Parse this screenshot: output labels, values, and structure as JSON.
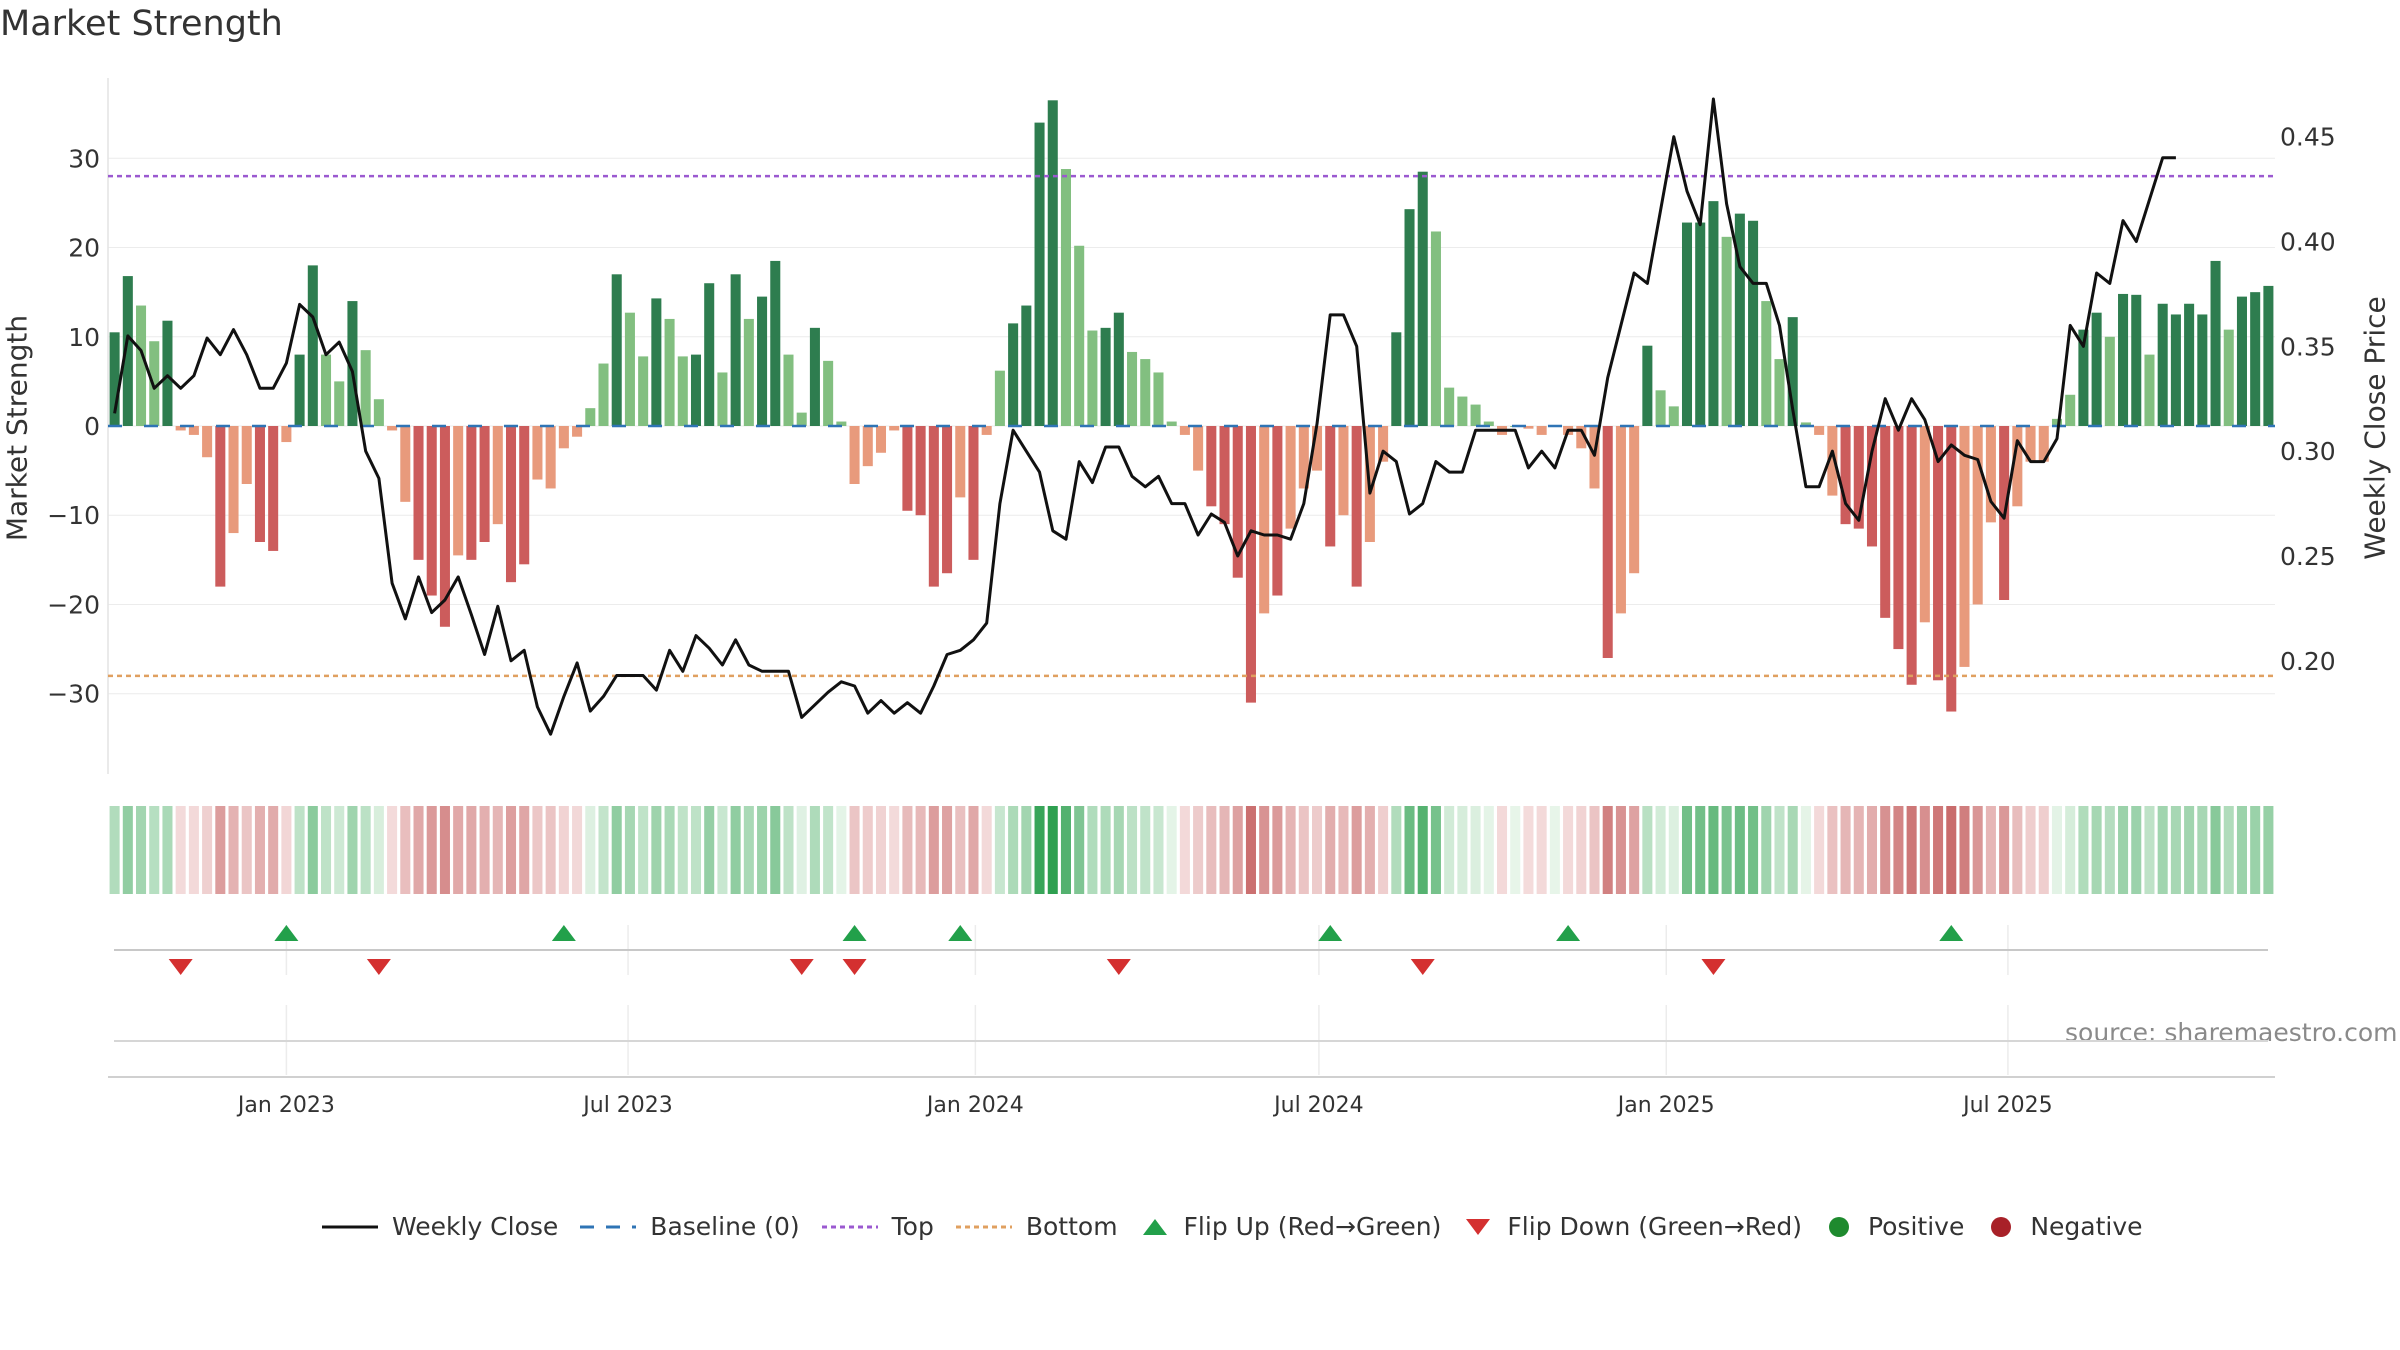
{
  "chart_data": {
    "type": "bar+line",
    "title": "Market Strength",
    "ylabel_left": "Market Strength",
    "ylabel_right": "Weekly Close Price",
    "source": "source: sharemaestro.com",
    "y_left_lim": [
      -39,
      39
    ],
    "y_left_ticks": [
      -30,
      -20,
      -10,
      0,
      10,
      20,
      30
    ],
    "y_left_tick_labels": [
      "−30",
      "−20",
      "−10",
      "0",
      "10",
      "20",
      "30"
    ],
    "y_right_lim": [
      0.146,
      0.478
    ],
    "y_right_ticks": [
      0.2,
      0.25,
      0.3,
      0.35,
      0.4,
      0.45
    ],
    "y_right_tick_labels": [
      "0.20",
      "0.25",
      "0.30",
      "0.35",
      "0.40",
      "0.45"
    ],
    "top_level": 28,
    "bottom_level": -28,
    "baseline": 0,
    "x_start": "2022-10-02",
    "x_step_days": 7,
    "x_ticks": [
      {
        "date": "2023-01-01",
        "label": "Jan 2023"
      },
      {
        "date": "2023-07-01",
        "label": "Jul 2023"
      },
      {
        "date": "2024-01-01",
        "label": "Jan 2024"
      },
      {
        "date": "2024-07-01",
        "label": "Jul 2024"
      },
      {
        "date": "2025-01-01",
        "label": "Jan 2025"
      },
      {
        "date": "2025-07-01",
        "label": "Jul 2025"
      }
    ],
    "strength": [
      10.5,
      16.8,
      13.5,
      9.5,
      11.8,
      -0.5,
      -1.0,
      -3.5,
      -18.0,
      -12.0,
      -6.5,
      -13.0,
      -14.0,
      -1.8,
      8.0,
      18.0,
      8.0,
      5.0,
      14.0,
      8.5,
      3.0,
      -0.5,
      -8.5,
      -15.0,
      -19.0,
      -22.5,
      -14.5,
      -15.0,
      -13.0,
      -11.0,
      -17.5,
      -15.5,
      -6.0,
      -7.0,
      -2.5,
      -1.2,
      2.0,
      7.0,
      17.0,
      12.7,
      7.8,
      14.3,
      12.0,
      7.8,
      8.0,
      16.0,
      6.0,
      17.0,
      12.0,
      14.5,
      18.5,
      8.0,
      1.5,
      11.0,
      7.3,
      0.5,
      -6.5,
      -4.5,
      -3.0,
      -0.5,
      -9.5,
      -10.0,
      -18.0,
      -16.5,
      -8.0,
      -15.0,
      -1.0,
      6.2,
      11.5,
      13.5,
      34.0,
      36.5,
      28.8,
      20.2,
      10.7,
      11.0,
      12.7,
      8.3,
      7.5,
      6.0,
      0.5,
      -1.0,
      -5.0,
      -9.0,
      -11.0,
      -17.0,
      -31.0,
      -21.0,
      -19.0,
      -11.5,
      -7.0,
      -5.0,
      -13.5,
      -10.0,
      -18.0,
      -13.0,
      -4.0,
      10.5,
      24.3,
      28.5,
      21.8,
      4.3,
      3.3,
      2.4,
      0.5,
      -1.0,
      0.0,
      -0.3,
      -1.0,
      0.0,
      -1.0,
      -2.5,
      -7.0,
      -26.0,
      -21.0,
      -16.5,
      9.0,
      4.0,
      2.2,
      22.8,
      22.8,
      25.2,
      21.2,
      23.8,
      23.0,
      14.0,
      7.5,
      12.2,
      0.4,
      -1.0,
      -7.8,
      -11.0,
      -11.5,
      -13.5,
      -21.5,
      -25.0,
      -29.0,
      -22.0,
      -28.5,
      -32.0,
      -27.0,
      -20.0,
      -10.8,
      -19.5,
      -9.0,
      -4.0,
      -4.0,
      0.8,
      3.5,
      10.8,
      12.7,
      10.0,
      14.8,
      14.7,
      8.0,
      13.7,
      12.5,
      13.7,
      12.5,
      18.5,
      10.8,
      14.5,
      15.0,
      15.7
    ],
    "price": [
      0.318,
      0.355,
      0.348,
      0.33,
      0.336,
      0.33,
      0.336,
      0.354,
      0.346,
      0.358,
      0.346,
      0.33,
      0.33,
      0.342,
      0.37,
      0.364,
      0.346,
      0.352,
      0.338,
      0.3,
      0.287,
      0.237,
      0.22,
      0.24,
      0.223,
      0.229,
      0.24,
      0.222,
      0.203,
      0.226,
      0.2,
      0.205,
      0.178,
      0.165,
      0.183,
      0.199,
      0.176,
      0.183,
      0.193,
      0.193,
      0.193,
      0.186,
      0.205,
      0.195,
      0.212,
      0.206,
      0.198,
      0.21,
      0.198,
      0.195,
      0.195,
      0.195,
      0.173,
      0.179,
      0.185,
      0.19,
      0.188,
      0.175,
      0.181,
      0.175,
      0.18,
      0.175,
      0.188,
      0.203,
      0.205,
      0.21,
      0.218,
      0.275,
      0.31,
      0.3,
      0.29,
      0.262,
      0.258,
      0.295,
      0.285,
      0.302,
      0.302,
      0.288,
      0.283,
      0.288,
      0.275,
      0.275,
      0.26,
      0.27,
      0.266,
      0.25,
      0.262,
      0.26,
      0.26,
      0.258,
      0.275,
      0.313,
      0.365,
      0.365,
      0.35,
      0.28,
      0.3,
      0.295,
      0.27,
      0.275,
      0.295,
      0.29,
      0.29,
      0.31,
      0.31,
      0.31,
      0.31,
      0.292,
      0.3,
      0.292,
      0.31,
      0.31,
      0.298,
      0.335,
      0.36,
      0.385,
      0.38,
      0.415,
      0.45,
      0.424,
      0.408,
      0.468,
      0.418,
      0.388,
      0.38,
      0.38,
      0.36,
      0.32,
      0.283,
      0.283,
      0.3,
      0.275,
      0.267,
      0.3,
      0.325,
      0.31,
      0.325,
      0.315,
      0.295,
      0.303,
      0.298,
      0.296,
      0.276,
      0.268,
      0.305,
      0.295,
      0.295,
      0.306,
      0.36,
      0.35,
      0.385,
      0.38,
      0.41,
      0.4,
      0.42,
      0.44,
      0.44
    ],
    "flip_up_indices": [
      13,
      34,
      56,
      64,
      92,
      110,
      139
    ],
    "flip_down_indices": [
      5,
      20,
      52,
      56,
      76,
      99,
      121
    ],
    "legend": [
      {
        "label": "Weekly Close",
        "marker": "line",
        "color": "#111111"
      },
      {
        "label": "Baseline (0)",
        "marker": "dash",
        "color": "#2f74b5"
      },
      {
        "label": "Top",
        "marker": "dot",
        "color": "#9b59d0"
      },
      {
        "label": "Bottom",
        "marker": "dot",
        "color": "#e0a060"
      },
      {
        "label": "Flip Up (Red→Green)",
        "marker": "triangle-up",
        "color": "#22a04a"
      },
      {
        "label": "Flip Down (Green→Red)",
        "marker": "triangle-down",
        "color": "#d43030"
      },
      {
        "label": "Positive",
        "marker": "circle",
        "color": "#1e8a2e"
      },
      {
        "label": "Negative",
        "marker": "circle",
        "color": "#a82128"
      }
    ]
  },
  "colors": {
    "pos_strong": "#2e7d4f",
    "pos_weak": "#82bf80",
    "neg_strong": "#cc5c5c",
    "neg_weak": "#e89a7c",
    "price_line": "#111111",
    "top_line": "#9b59d0",
    "bottom_line": "#e0a060",
    "baseline": "#2f74b5"
  }
}
